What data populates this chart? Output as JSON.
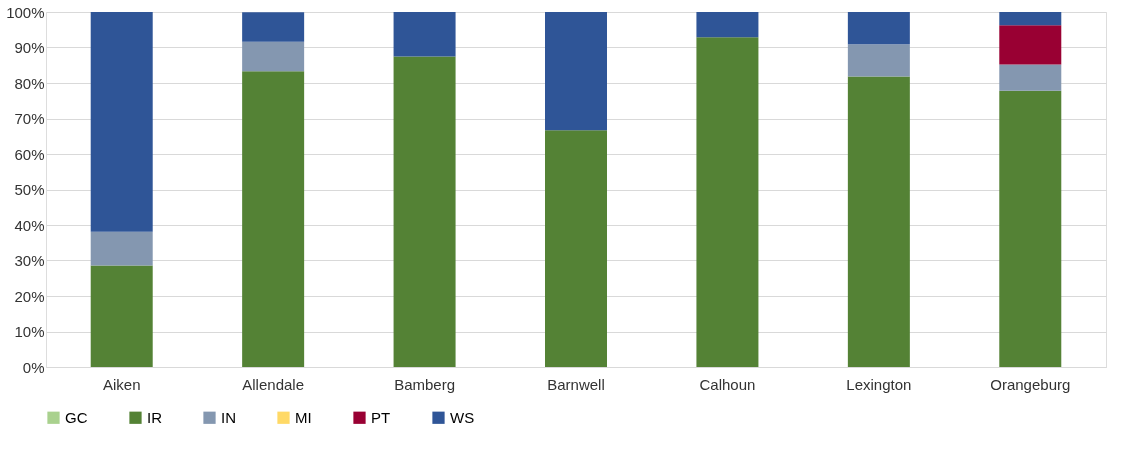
{
  "chart_data": {
    "type": "bar",
    "stacked": true,
    "categories": [
      "Aiken",
      "Allendale",
      "Bamberg",
      "Barnwell",
      "Calhoun",
      "Lexington",
      "Orangeburg"
    ],
    "series": [
      {
        "name": "GC",
        "color": "#a9d18e",
        "values": [
          0,
          0,
          0,
          0,
          0,
          0,
          0
        ]
      },
      {
        "name": "IR",
        "color": "#548235",
        "values": [
          28.6,
          83.3,
          87.5,
          66.7,
          92.9,
          81.8,
          77.8
        ]
      },
      {
        "name": "IN",
        "color": "#8497b0",
        "values": [
          9.5,
          8.3,
          0,
          0,
          0,
          9.1,
          7.4
        ]
      },
      {
        "name": "MI",
        "color": "#ffd966",
        "values": [
          0,
          0,
          0,
          0,
          0,
          0,
          0
        ]
      },
      {
        "name": "PT",
        "color": "#990033",
        "values": [
          0,
          0,
          0,
          0,
          0,
          0,
          11.1
        ]
      },
      {
        "name": "WS",
        "color": "#2f5597",
        "values": [
          61.9,
          8.3,
          12.5,
          33.3,
          7.1,
          9.1,
          3.7
        ]
      }
    ],
    "ylim": [
      0,
      100
    ],
    "yticks": [
      {
        "value": 0,
        "label": "0%"
      },
      {
        "value": 10,
        "label": "10%"
      },
      {
        "value": 20,
        "label": "20%"
      },
      {
        "value": 30,
        "label": "30%"
      },
      {
        "value": 40,
        "label": "40%"
      },
      {
        "value": 50,
        "label": "50%"
      },
      {
        "value": 60,
        "label": "60%"
      },
      {
        "value": 70,
        "label": "70%"
      },
      {
        "value": 80,
        "label": "80%"
      },
      {
        "value": 90,
        "label": "90%"
      },
      {
        "value": 100,
        "label": "100%"
      }
    ],
    "grid": "y",
    "legend": "bottom"
  }
}
